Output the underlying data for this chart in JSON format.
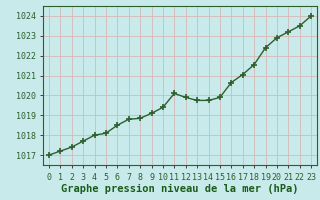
{
  "x": [
    0,
    1,
    2,
    3,
    4,
    5,
    6,
    7,
    8,
    9,
    10,
    11,
    12,
    13,
    14,
    15,
    16,
    17,
    18,
    19,
    20,
    21,
    22,
    23
  ],
  "y": [
    1017.0,
    1017.2,
    1017.4,
    1017.7,
    1018.0,
    1018.1,
    1018.5,
    1018.8,
    1018.85,
    1019.1,
    1019.4,
    1020.1,
    1019.9,
    1019.75,
    1019.75,
    1019.9,
    1020.65,
    1021.05,
    1021.55,
    1022.4,
    1022.9,
    1023.2,
    1023.5,
    1024.0
  ],
  "line_color": "#2d5e2d",
  "marker_color": "#2d5e2d",
  "background_color": "#c8eaea",
  "grid_color": "#d4b8b8",
  "xlabel": "Graphe pression niveau de la mer (hPa)",
  "xlabel_color": "#1a5c1a",
  "tick_label_color": "#2d5e2d",
  "ylim": [
    1016.5,
    1024.5
  ],
  "xlim": [
    -0.5,
    23.5
  ],
  "yticks": [
    1017,
    1018,
    1019,
    1020,
    1021,
    1022,
    1023,
    1024
  ],
  "xticks": [
    0,
    1,
    2,
    3,
    4,
    5,
    6,
    7,
    8,
    9,
    10,
    11,
    12,
    13,
    14,
    15,
    16,
    17,
    18,
    19,
    20,
    21,
    22,
    23
  ],
  "xtick_labels": [
    "0",
    "1",
    "2",
    "3",
    "4",
    "5",
    "6",
    "7",
    "8",
    "9",
    "10",
    "11",
    "12",
    "13",
    "14",
    "15",
    "16",
    "17",
    "18",
    "19",
    "20",
    "21",
    "22",
    "23"
  ],
  "line_width": 1.0,
  "marker_size": 3.0,
  "xlabel_fontsize": 7.5,
  "tick_fontsize": 6.0
}
